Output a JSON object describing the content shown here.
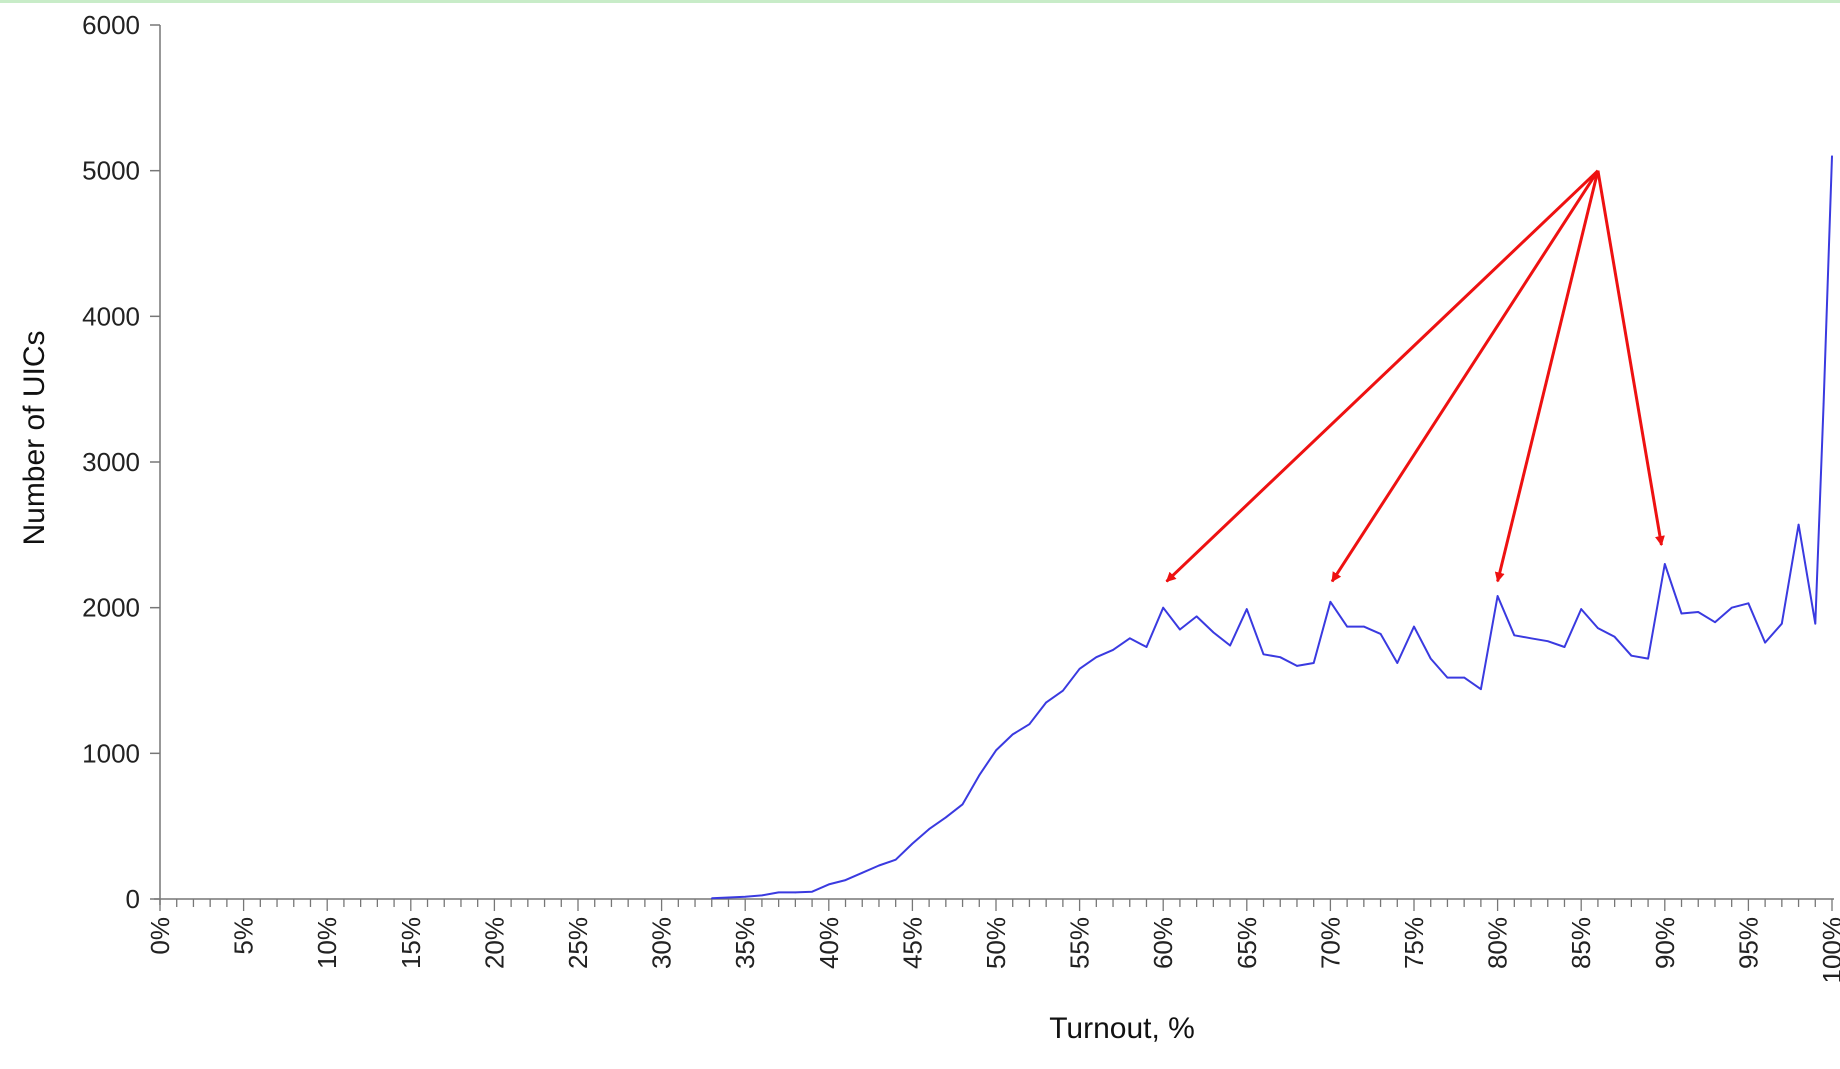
{
  "chart_data": {
    "type": "line",
    "title": "",
    "xlabel": "Turnout, %",
    "ylabel": "Number of UICs",
    "xlim": [
      0,
      100
    ],
    "ylim": [
      0,
      6000
    ],
    "y_ticks": [
      0,
      1000,
      2000,
      3000,
      4000,
      5000,
      6000
    ],
    "y_tick_labels": [
      "0",
      "1000",
      "2000",
      "3000",
      "4000",
      "5000",
      "6000"
    ],
    "x_ticks": [
      0,
      5,
      10,
      15,
      20,
      25,
      30,
      35,
      40,
      45,
      50,
      55,
      60,
      65,
      70,
      75,
      80,
      85,
      90,
      95,
      100
    ],
    "x_tick_labels": [
      "0%",
      "5%",
      "10%",
      "15%",
      "20%",
      "25%",
      "30%",
      "35%",
      "40%",
      "45%",
      "50%",
      "55%",
      "60%",
      "65%",
      "70%",
      "75%",
      "80%",
      "85%",
      "90%",
      "95%",
      "100%"
    ],
    "grid": false,
    "colors": {
      "series": "#3a3ae0",
      "annotation": "#ee1111",
      "axis": "#777777",
      "frame": "#c8ecc8"
    },
    "series": [
      {
        "x": [
          33,
          34,
          35,
          36,
          37,
          38,
          39,
          40,
          41,
          42,
          43,
          44,
          45,
          46,
          47,
          48,
          49,
          50,
          51,
          52,
          53,
          54,
          55,
          56,
          57,
          58,
          59,
          60,
          61,
          62,
          63,
          64,
          65,
          66,
          67,
          68,
          69,
          70,
          71,
          72,
          73,
          74,
          75,
          76,
          77,
          78,
          79,
          80,
          81,
          82,
          83,
          84,
          85,
          86,
          87,
          88,
          89,
          90,
          91,
          92,
          93,
          94,
          95,
          96,
          97,
          98,
          99,
          99.5,
          100
        ],
        "y": [
          5,
          10,
          15,
          25,
          45,
          45,
          50,
          100,
          130,
          180,
          230,
          270,
          380,
          480,
          560,
          650,
          850,
          1020,
          1130,
          1200,
          1350,
          1430,
          1580,
          1660,
          1710,
          1790,
          1730,
          2000,
          1850,
          1940,
          1830,
          1740,
          1990,
          1680,
          1660,
          1600,
          1620,
          2040,
          1870,
          1870,
          1820,
          1620,
          1870,
          1650,
          1520,
          1520,
          1440,
          2080,
          1810,
          1790,
          1770,
          1730,
          1990,
          1860,
          1800,
          1670,
          1650,
          2300,
          1960,
          1970,
          1900,
          2000,
          2030,
          1760,
          1890,
          2570,
          1890,
          3400,
          5100
        ]
      }
    ],
    "annotations": {
      "origin": [
        86,
        5000
      ],
      "targets": [
        [
          60.2,
          2180
        ],
        [
          70.1,
          2180
        ],
        [
          80.0,
          2180
        ],
        [
          89.8,
          2430
        ]
      ]
    }
  }
}
